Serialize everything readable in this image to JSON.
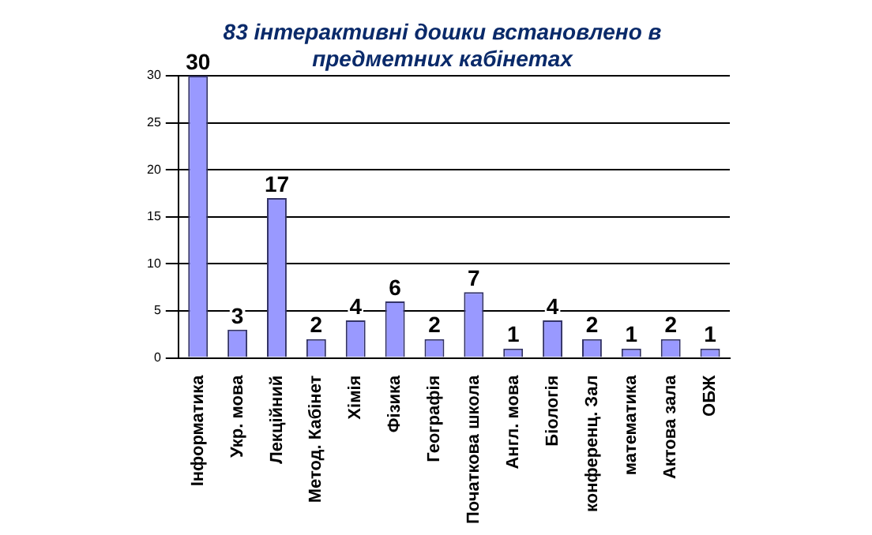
{
  "chart_data": {
    "type": "bar",
    "title": "83 інтерактивні дошки встановлено в предметних кабінетах",
    "categories": [
      "Інформатика",
      "Укр. мова",
      "Лекційний",
      "Метод. Кабінет",
      "Хімія",
      "Фізика",
      "Географія",
      "Початкова школа",
      "Англ. мова",
      "Біологія",
      "конференц. Зал",
      "математика",
      "Актова зала",
      "ОБЖ"
    ],
    "values": [
      30,
      3,
      17,
      2,
      4,
      6,
      2,
      7,
      1,
      4,
      2,
      1,
      2,
      1
    ],
    "color": "#9999ff",
    "ylim": [
      0,
      30
    ],
    "yticks": [
      0,
      5,
      10,
      15,
      20,
      25,
      30
    ],
    "grid": "y",
    "data_labels": true
  }
}
